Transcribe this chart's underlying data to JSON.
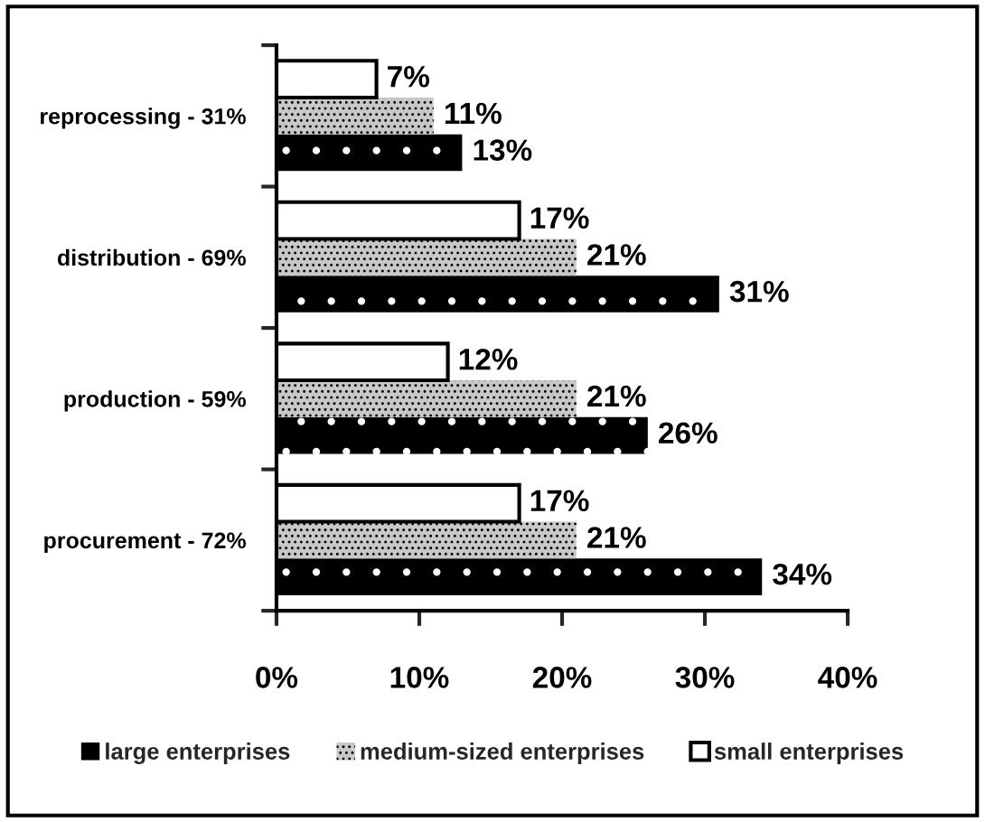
{
  "chart_data": {
    "type": "bar",
    "orientation": "horizontal",
    "categories": [
      "reprocessing - 31%",
      "distribution - 69%",
      "production - 59%",
      "procurement - 72%"
    ],
    "series": [
      {
        "name": "large enterprises",
        "color": "#000000",
        "values": [
          13,
          31,
          26,
          34
        ],
        "value_labels": [
          "13%",
          "31%",
          "26%",
          "34%"
        ]
      },
      {
        "name": "medium-sized enterprises",
        "color": "#c8c8c8",
        "values": [
          11,
          21,
          21,
          21
        ],
        "value_labels": [
          "11%",
          "21%",
          "21%",
          "21%"
        ]
      },
      {
        "name": "small enterprises",
        "color": "#ffffff",
        "values": [
          7,
          17,
          12,
          17
        ],
        "value_labels": [
          "7%",
          "17%",
          "12%",
          "17%"
        ]
      }
    ],
    "xlim": [
      0,
      40
    ],
    "xticks": [
      {
        "value": 0,
        "label": "0%"
      },
      {
        "value": 10,
        "label": "10%"
      },
      {
        "value": 20,
        "label": "20%"
      },
      {
        "value": 30,
        "label": "30%"
      },
      {
        "value": 40,
        "label": "40%"
      }
    ],
    "grid": false,
    "legend": "bottom"
  }
}
